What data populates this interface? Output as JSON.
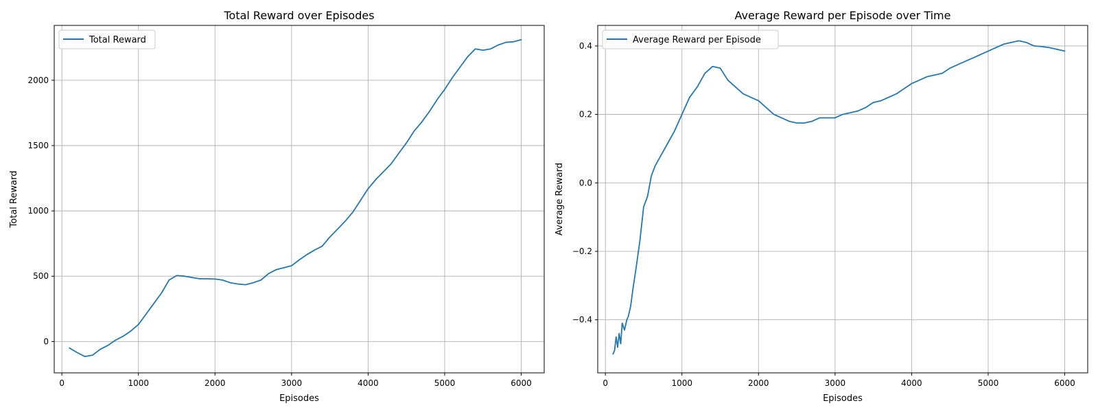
{
  "colors": {
    "series": "#1f77b4",
    "grid": "#b0b0b0",
    "axis": "#000000"
  },
  "chart_data": [
    {
      "type": "line",
      "title": "Total Reward over Episodes",
      "xlabel": "Episodes",
      "ylabel": "Total Reward",
      "xlim": [
        -100,
        6300
      ],
      "ylim": [
        -240,
        2420
      ],
      "xticks": [
        0,
        1000,
        2000,
        3000,
        4000,
        5000,
        6000
      ],
      "xtick_labels": [
        "0",
        "1000",
        "2000",
        "3000",
        "4000",
        "5000",
        "6000"
      ],
      "yticks": [
        0,
        500,
        1000,
        1500,
        2000
      ],
      "ytick_labels": [
        "0",
        "500",
        "1000",
        "1500",
        "2000"
      ],
      "grid": true,
      "legend": "top-left",
      "series": [
        {
          "name": "Total Reward",
          "x": [
            100,
            200,
            300,
            400,
            500,
            600,
            700,
            800,
            900,
            1000,
            1100,
            1200,
            1300,
            1400,
            1500,
            1600,
            1700,
            1800,
            1900,
            2000,
            2100,
            2200,
            2300,
            2400,
            2500,
            2600,
            2700,
            2800,
            2900,
            3000,
            3100,
            3200,
            3300,
            3400,
            3500,
            3600,
            3700,
            3800,
            3900,
            4000,
            4100,
            4200,
            4300,
            4400,
            4500,
            4600,
            4700,
            4800,
            4900,
            5000,
            5100,
            5200,
            5300,
            5400,
            5500,
            5600,
            5700,
            5800,
            5900,
            6000
          ],
          "y": [
            -50,
            -85,
            -115,
            -105,
            -60,
            -30,
            10,
            40,
            80,
            130,
            210,
            290,
            370,
            470,
            505,
            500,
            490,
            480,
            480,
            478,
            470,
            450,
            440,
            435,
            450,
            470,
            520,
            550,
            565,
            580,
            625,
            665,
            700,
            730,
            800,
            860,
            920,
            990,
            1080,
            1170,
            1240,
            1300,
            1360,
            1440,
            1520,
            1610,
            1680,
            1760,
            1850,
            1930,
            2020,
            2100,
            2180,
            2240,
            2230,
            2240,
            2270,
            2290,
            2295,
            2310
          ]
        }
      ]
    },
    {
      "type": "line",
      "title": "Average Reward per Episode over Time",
      "xlabel": "Episodes",
      "ylabel": "Average Reward",
      "xlim": [
        -100,
        6300
      ],
      "ylim": [
        -0.555,
        0.46
      ],
      "xticks": [
        0,
        1000,
        2000,
        3000,
        4000,
        5000,
        6000
      ],
      "xtick_labels": [
        "0",
        "1000",
        "2000",
        "3000",
        "4000",
        "5000",
        "6000"
      ],
      "yticks": [
        -0.4,
        -0.2,
        0.0,
        0.2,
        0.4
      ],
      "ytick_labels": [
        "−0.4",
        "−0.2",
        "0.0",
        "0.2",
        "0.4"
      ],
      "grid": true,
      "legend": "top-left",
      "series": [
        {
          "name": "Average Reward per Episode",
          "x": [
            100,
            120,
            140,
            160,
            180,
            200,
            220,
            250,
            280,
            300,
            330,
            360,
            400,
            450,
            500,
            550,
            600,
            650,
            700,
            800,
            900,
            1000,
            1100,
            1200,
            1300,
            1400,
            1500,
            1600,
            1700,
            1800,
            1900,
            2000,
            2100,
            2200,
            2300,
            2400,
            2500,
            2600,
            2700,
            2800,
            2900,
            3000,
            3100,
            3200,
            3300,
            3400,
            3500,
            3600,
            3700,
            3800,
            3900,
            4000,
            4100,
            4200,
            4300,
            4400,
            4500,
            4600,
            4700,
            4800,
            4900,
            5000,
            5100,
            5200,
            5300,
            5400,
            5500,
            5600,
            5700,
            5800,
            5900,
            6000
          ],
          "y": [
            -0.5,
            -0.49,
            -0.45,
            -0.48,
            -0.44,
            -0.47,
            -0.41,
            -0.43,
            -0.4,
            -0.39,
            -0.36,
            -0.31,
            -0.25,
            -0.17,
            -0.07,
            -0.04,
            0.02,
            0.05,
            0.07,
            0.11,
            0.15,
            0.2,
            0.25,
            0.28,
            0.32,
            0.34,
            0.335,
            0.3,
            0.28,
            0.26,
            0.25,
            0.24,
            0.22,
            0.2,
            0.19,
            0.18,
            0.175,
            0.175,
            0.18,
            0.19,
            0.19,
            0.19,
            0.2,
            0.205,
            0.21,
            0.22,
            0.235,
            0.24,
            0.25,
            0.26,
            0.275,
            0.29,
            0.3,
            0.31,
            0.315,
            0.32,
            0.335,
            0.345,
            0.355,
            0.365,
            0.375,
            0.385,
            0.395,
            0.405,
            0.41,
            0.415,
            0.41,
            0.4,
            0.398,
            0.395,
            0.39,
            0.385
          ]
        }
      ]
    }
  ]
}
